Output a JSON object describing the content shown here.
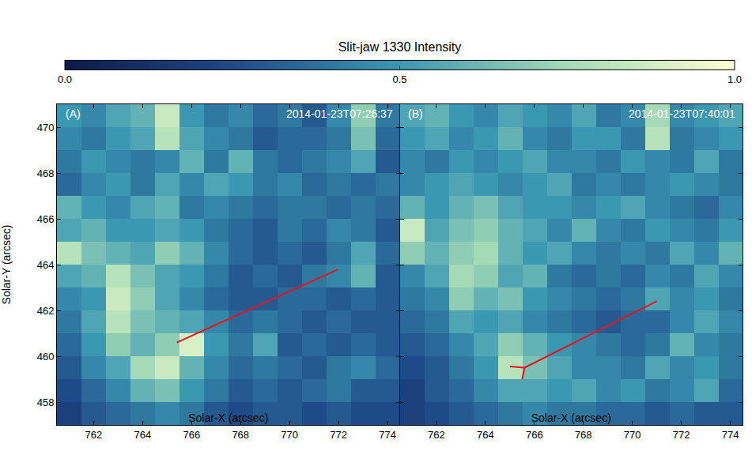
{
  "chart_data": {
    "type": "heatmap",
    "colorbar": {
      "title": "Slit-jaw 1330 Intensity",
      "range": [
        0,
        1
      ],
      "ticks": [
        {
          "value": 0,
          "label": "0.0"
        },
        {
          "value": 0.5,
          "label": "0.5"
        },
        {
          "value": 1,
          "label": "1.0"
        }
      ]
    },
    "panels": [
      {
        "label": "(A)",
        "timestamp": "2014-01-23T07:26:37",
        "xlabel": "Solar-X (arcsec)",
        "ylabel": "Solar-Y (arcsec)",
        "xlim": [
          760.5,
          774.5
        ],
        "ylim": [
          457,
          471
        ],
        "xticks": [
          762,
          764,
          766,
          768,
          770,
          772,
          774
        ],
        "yticks": [
          458,
          460,
          462,
          464,
          466,
          468,
          470
        ],
        "x": [
          761,
          762,
          763,
          764,
          765,
          766,
          767,
          768,
          769,
          770,
          771,
          772,
          773,
          774
        ],
        "y": [
          470.5,
          469.5,
          468.5,
          467.5,
          466.5,
          465.5,
          464.5,
          463.5,
          462.5,
          461.5,
          460.5,
          459.5,
          458.5,
          457.5
        ],
        "z": [
          [
            0.5,
            0.45,
            0.55,
            0.6,
            0.85,
            0.5,
            0.4,
            0.45,
            0.35,
            0.4,
            0.3,
            0.45,
            0.7,
            0.4
          ],
          [
            0.45,
            0.4,
            0.5,
            0.55,
            0.8,
            0.55,
            0.45,
            0.4,
            0.3,
            0.35,
            0.35,
            0.4,
            0.65,
            0.35
          ],
          [
            0.4,
            0.5,
            0.45,
            0.4,
            0.45,
            0.6,
            0.4,
            0.6,
            0.4,
            0.35,
            0.4,
            0.45,
            0.55,
            0.3
          ],
          [
            0.35,
            0.45,
            0.5,
            0.4,
            0.55,
            0.45,
            0.55,
            0.5,
            0.4,
            0.45,
            0.35,
            0.4,
            0.35,
            0.4
          ],
          [
            0.6,
            0.5,
            0.45,
            0.55,
            0.6,
            0.4,
            0.45,
            0.4,
            0.35,
            0.4,
            0.4,
            0.35,
            0.4,
            0.35
          ],
          [
            0.55,
            0.6,
            0.5,
            0.5,
            0.55,
            0.5,
            0.4,
            0.35,
            0.3,
            0.4,
            0.35,
            0.45,
            0.4,
            0.3
          ],
          [
            0.8,
            0.65,
            0.6,
            0.55,
            0.7,
            0.6,
            0.45,
            0.35,
            0.3,
            0.35,
            0.3,
            0.4,
            0.55,
            0.35
          ],
          [
            0.55,
            0.6,
            0.8,
            0.65,
            0.55,
            0.5,
            0.4,
            0.3,
            0.35,
            0.3,
            0.4,
            0.45,
            0.6,
            0.3
          ],
          [
            0.45,
            0.5,
            0.85,
            0.7,
            0.55,
            0.45,
            0.35,
            0.3,
            0.3,
            0.35,
            0.35,
            0.3,
            0.35,
            0.3
          ],
          [
            0.4,
            0.55,
            0.8,
            0.65,
            0.6,
            0.55,
            0.45,
            0.35,
            0.4,
            0.35,
            0.3,
            0.35,
            0.3,
            0.3
          ],
          [
            0.35,
            0.5,
            0.7,
            0.6,
            0.7,
            0.9,
            0.5,
            0.4,
            0.55,
            0.3,
            0.35,
            0.3,
            0.35,
            0.3
          ],
          [
            0.3,
            0.45,
            0.55,
            0.75,
            0.85,
            0.6,
            0.45,
            0.35,
            0.4,
            0.35,
            0.3,
            0.4,
            0.45,
            0.35
          ],
          [
            0.25,
            0.35,
            0.45,
            0.6,
            0.65,
            0.5,
            0.4,
            0.3,
            0.35,
            0.3,
            0.35,
            0.4,
            0.3,
            0.3
          ],
          [
            0.2,
            0.3,
            0.35,
            0.4,
            0.45,
            0.4,
            0.3,
            0.25,
            0.3,
            0.3,
            0.25,
            0.3,
            0.25,
            0.25
          ]
        ],
        "lines": [
          {
            "x": [
              765.4,
              772.0
            ],
            "y": [
              460.6,
              463.8
            ],
            "color": "#e8141c"
          }
        ]
      },
      {
        "label": "(B)",
        "timestamp": "2014-01-23T07:40:01",
        "xlabel": "Solar-X (arcsec)",
        "tick_labels": "x",
        "xlim": [
          760.5,
          774.5
        ],
        "ylim": [
          457,
          471
        ],
        "xticks": [
          762,
          764,
          766,
          768,
          770,
          772,
          774
        ],
        "yticks": [
          458,
          460,
          462,
          464,
          466,
          468,
          470
        ],
        "x": [
          761,
          762,
          763,
          764,
          765,
          766,
          767,
          768,
          769,
          770,
          771,
          772,
          773,
          774
        ],
        "y": [
          470.5,
          469.5,
          468.5,
          467.5,
          466.5,
          465.5,
          464.5,
          463.5,
          462.5,
          461.5,
          460.5,
          459.5,
          458.5,
          457.5
        ],
        "z": [
          [
            0.55,
            0.6,
            0.5,
            0.45,
            0.55,
            0.5,
            0.45,
            0.55,
            0.4,
            0.45,
            0.75,
            0.45,
            0.5,
            0.55
          ],
          [
            0.5,
            0.55,
            0.45,
            0.5,
            0.6,
            0.45,
            0.4,
            0.5,
            0.5,
            0.4,
            0.8,
            0.4,
            0.45,
            0.5
          ],
          [
            0.45,
            0.4,
            0.5,
            0.45,
            0.5,
            0.55,
            0.45,
            0.45,
            0.4,
            0.5,
            0.45,
            0.4,
            0.55,
            0.4
          ],
          [
            0.45,
            0.5,
            0.55,
            0.5,
            0.45,
            0.5,
            0.55,
            0.4,
            0.45,
            0.4,
            0.45,
            0.5,
            0.45,
            0.4
          ],
          [
            0.6,
            0.5,
            0.6,
            0.65,
            0.55,
            0.5,
            0.5,
            0.45,
            0.5,
            0.55,
            0.45,
            0.4,
            0.35,
            0.45
          ],
          [
            0.85,
            0.55,
            0.65,
            0.7,
            0.6,
            0.55,
            0.45,
            0.6,
            0.45,
            0.4,
            0.5,
            0.45,
            0.4,
            0.5
          ],
          [
            0.7,
            0.6,
            0.7,
            0.75,
            0.6,
            0.5,
            0.55,
            0.45,
            0.4,
            0.45,
            0.4,
            0.55,
            0.45,
            0.6
          ],
          [
            0.45,
            0.55,
            0.75,
            0.7,
            0.55,
            0.6,
            0.4,
            0.35,
            0.4,
            0.35,
            0.45,
            0.4,
            0.55,
            0.45
          ],
          [
            0.4,
            0.45,
            0.7,
            0.6,
            0.65,
            0.5,
            0.45,
            0.4,
            0.35,
            0.4,
            0.55,
            0.45,
            0.5,
            0.4
          ],
          [
            0.35,
            0.4,
            0.55,
            0.5,
            0.55,
            0.45,
            0.4,
            0.35,
            0.3,
            0.35,
            0.35,
            0.45,
            0.55,
            0.45
          ],
          [
            0.3,
            0.35,
            0.45,
            0.55,
            0.7,
            0.6,
            0.5,
            0.45,
            0.4,
            0.35,
            0.4,
            0.6,
            0.45,
            0.4
          ],
          [
            0.25,
            0.3,
            0.4,
            0.5,
            0.8,
            0.65,
            0.55,
            0.45,
            0.45,
            0.4,
            0.55,
            0.45,
            0.5,
            0.4
          ],
          [
            0.2,
            0.3,
            0.35,
            0.45,
            0.55,
            0.55,
            0.5,
            0.55,
            0.45,
            0.5,
            0.4,
            0.45,
            0.55,
            0.35
          ],
          [
            0.2,
            0.25,
            0.3,
            0.35,
            0.4,
            0.45,
            0.4,
            0.4,
            0.35,
            0.35,
            0.3,
            0.35,
            0.3,
            0.3
          ]
        ],
        "lines": [
          {
            "x": [
              765.6,
              771.0
            ],
            "y": [
              459.5,
              462.4
            ],
            "color": "#e8141c"
          },
          {
            "x": [
              765.0,
              765.6
            ],
            "y": [
              459.55,
              459.5
            ],
            "color": "#e8141c"
          },
          {
            "x": [
              765.6,
              765.5
            ],
            "y": [
              459.5,
              459.0
            ],
            "color": "#e8141c"
          }
        ]
      }
    ]
  }
}
